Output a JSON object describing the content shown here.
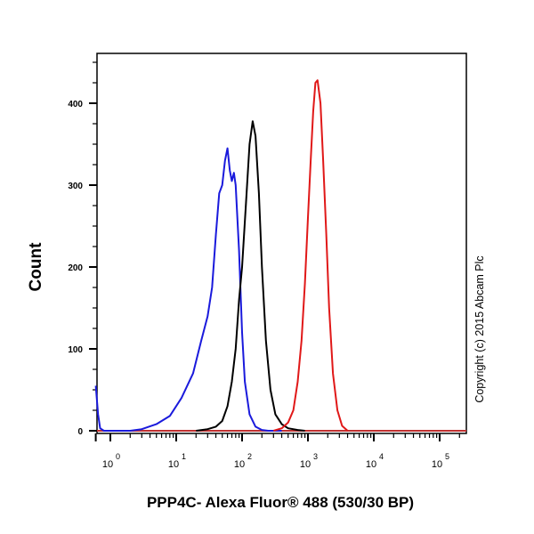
{
  "chart_data": {
    "type": "line",
    "subtype": "flow-cytometry-histogram",
    "title": "",
    "xlabel": "PPP4C- Alexa Fluor® 488 (530/30 BP)",
    "ylabel": "Count",
    "x_scale": "log",
    "xlim": [
      0.6,
      250000
    ],
    "ylim": [
      0,
      460
    ],
    "x_tick_labels": [
      "10^0",
      "10^1",
      "10^2",
      "10^3",
      "10^4",
      "10^5"
    ],
    "x_ticks": [
      1,
      10,
      100,
      1000,
      10000,
      100000
    ],
    "y_ticks": [
      0,
      100,
      200,
      300,
      400
    ],
    "grid": false,
    "legend": null,
    "annotation": "Copyright (c) 2015 Abcam Plc",
    "series": [
      {
        "name": "blue",
        "color": "#1a1adc",
        "x": [
          0.6,
          0.65,
          0.7,
          0.8,
          1,
          2,
          3,
          5,
          8,
          12,
          18,
          24,
          30,
          35,
          40,
          45,
          50,
          55,
          60,
          65,
          70,
          75,
          80,
          90,
          100,
          110,
          130,
          160,
          200,
          250,
          300,
          400
        ],
        "y": [
          55,
          20,
          3,
          0,
          0,
          0,
          2,
          8,
          18,
          40,
          70,
          110,
          140,
          175,
          240,
          290,
          300,
          330,
          345,
          318,
          305,
          315,
          300,
          220,
          120,
          60,
          20,
          5,
          1,
          0,
          0,
          0
        ]
      },
      {
        "name": "black",
        "color": "#000000",
        "x": [
          20,
          30,
          40,
          50,
          60,
          70,
          80,
          90,
          100,
          115,
          130,
          145,
          160,
          180,
          200,
          230,
          270,
          320,
          400,
          500,
          700,
          900
        ],
        "y": [
          0,
          2,
          5,
          12,
          30,
          60,
          100,
          160,
          200,
          280,
          350,
          378,
          360,
          290,
          200,
          110,
          50,
          20,
          8,
          3,
          1,
          0
        ]
      },
      {
        "name": "red",
        "color": "#e01818",
        "x": [
          300,
          400,
          500,
          600,
          700,
          800,
          900,
          1000,
          1100,
          1200,
          1300,
          1400,
          1550,
          1700,
          1900,
          2100,
          2400,
          2800,
          3300,
          4000
        ],
        "y": [
          0,
          3,
          10,
          25,
          60,
          110,
          180,
          260,
          330,
          390,
          425,
          428,
          400,
          330,
          240,
          150,
          70,
          25,
          6,
          0
        ]
      }
    ]
  },
  "axes": {
    "ylabel": "Count",
    "xlabel": "PPP4C- Alexa Fluor® 488 (530/30 BP)",
    "y_tick_labels": [
      "0",
      "100",
      "200",
      "300",
      "400"
    ],
    "x_tick_labels": [
      {
        "base": "10",
        "exp": "0"
      },
      {
        "base": "10",
        "exp": "1"
      },
      {
        "base": "10",
        "exp": "2"
      },
      {
        "base": "10",
        "exp": "3"
      },
      {
        "base": "10",
        "exp": "4"
      },
      {
        "base": "10",
        "exp": "5"
      }
    ]
  },
  "annotation": {
    "copyright": "Copyright (c) 2015 Abcam Plc"
  }
}
